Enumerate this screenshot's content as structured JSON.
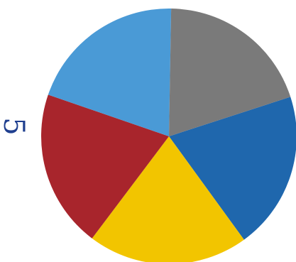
{
  "label_text": "5",
  "chart_data": {
    "type": "pie",
    "title": "",
    "slices": [
      {
        "value": 72,
        "color": "#1f67ad"
      },
      {
        "value": 73,
        "color": "#f2c500"
      },
      {
        "value": 72,
        "color": "#a8252c"
      },
      {
        "value": 72,
        "color": "#4a9ad6"
      },
      {
        "value": 71,
        "color": "#7a7a7a"
      }
    ],
    "start_angle_deg": 72,
    "direction": "clockwise"
  }
}
